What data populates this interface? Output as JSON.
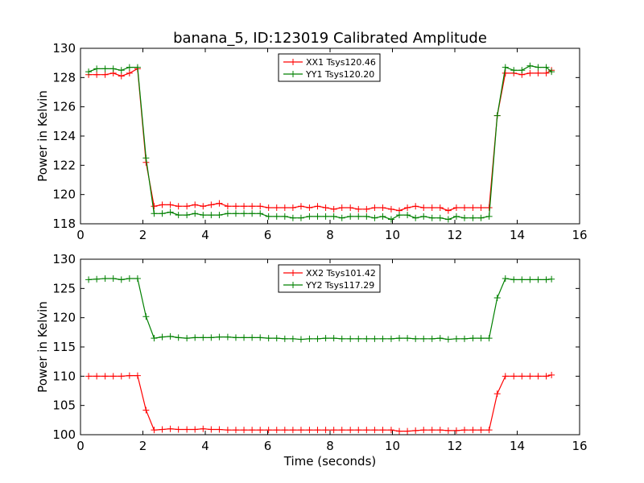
{
  "figure": {
    "title": "banana_5, ID:123019 Calibrated Amplitude",
    "xlabel": "Time (seconds)"
  },
  "chart_data": [
    {
      "type": "line",
      "title": "banana_5, ID:123019 Calibrated Amplitude",
      "xlabel": "",
      "ylabel": "Power in Kelvin",
      "xlim": [
        0,
        16
      ],
      "ylim": [
        118,
        130
      ],
      "xticks": [
        0,
        2,
        4,
        6,
        8,
        10,
        12,
        14,
        16
      ],
      "yticks": [
        118,
        120,
        122,
        124,
        126,
        128,
        130
      ],
      "grid": false,
      "legend": "top-center",
      "marker": "+",
      "x": [
        0.26,
        0.52,
        0.79,
        1.05,
        1.31,
        1.57,
        1.83,
        2.1,
        2.36,
        2.62,
        2.88,
        3.14,
        3.41,
        3.67,
        3.93,
        4.19,
        4.45,
        4.72,
        4.98,
        5.24,
        5.5,
        5.76,
        6.03,
        6.29,
        6.55,
        6.81,
        7.07,
        7.34,
        7.6,
        7.86,
        8.12,
        8.38,
        8.65,
        8.91,
        9.17,
        9.43,
        9.69,
        9.96,
        10.22,
        10.48,
        10.74,
        11.0,
        11.27,
        11.53,
        11.79,
        12.05,
        12.31,
        12.58,
        12.84,
        13.1,
        13.36,
        13.62,
        13.89,
        14.15,
        14.41,
        14.67,
        14.93,
        15.1
      ],
      "series": [
        {
          "name": "XX1 Tsys120.46",
          "color": "#ff0000",
          "values": [
            128.2,
            128.2,
            128.2,
            128.3,
            128.1,
            128.3,
            128.6,
            122.2,
            119.2,
            119.3,
            119.3,
            119.2,
            119.2,
            119.3,
            119.2,
            119.3,
            119.4,
            119.2,
            119.2,
            119.2,
            119.2,
            119.2,
            119.1,
            119.1,
            119.1,
            119.1,
            119.2,
            119.1,
            119.2,
            119.1,
            119.0,
            119.1,
            119.1,
            119.0,
            119.0,
            119.1,
            119.1,
            119.0,
            118.9,
            119.1,
            119.2,
            119.1,
            119.1,
            119.1,
            118.9,
            119.1,
            119.1,
            119.1,
            119.1,
            119.1,
            125.4,
            128.3,
            128.3,
            128.2,
            128.3,
            128.3,
            128.3,
            128.5
          ]
        },
        {
          "name": "YY1 Tsys120.20",
          "color": "#008000",
          "values": [
            128.4,
            128.6,
            128.6,
            128.6,
            128.5,
            128.7,
            128.7,
            122.5,
            118.7,
            118.7,
            118.8,
            118.6,
            118.6,
            118.7,
            118.6,
            118.6,
            118.6,
            118.7,
            118.7,
            118.7,
            118.7,
            118.7,
            118.5,
            118.5,
            118.5,
            118.4,
            118.4,
            118.5,
            118.5,
            118.5,
            118.5,
            118.4,
            118.5,
            118.5,
            118.5,
            118.4,
            118.5,
            118.3,
            118.6,
            118.6,
            118.4,
            118.5,
            118.4,
            118.4,
            118.3,
            118.5,
            118.4,
            118.4,
            118.4,
            118.5,
            125.4,
            128.7,
            128.5,
            128.5,
            128.8,
            128.7,
            128.7,
            128.4
          ]
        }
      ]
    },
    {
      "type": "line",
      "title": "",
      "xlabel": "Time (seconds)",
      "ylabel": "Power in Kelvin",
      "xlim": [
        0,
        16
      ],
      "ylim": [
        100,
        130
      ],
      "xticks": [
        0,
        2,
        4,
        6,
        8,
        10,
        12,
        14,
        16
      ],
      "yticks": [
        100,
        105,
        110,
        115,
        120,
        125,
        130
      ],
      "grid": false,
      "legend": "top-center",
      "marker": "+",
      "x": [
        0.26,
        0.52,
        0.79,
        1.05,
        1.31,
        1.57,
        1.83,
        2.1,
        2.36,
        2.62,
        2.88,
        3.14,
        3.41,
        3.67,
        3.93,
        4.19,
        4.45,
        4.72,
        4.98,
        5.24,
        5.5,
        5.76,
        6.03,
        6.29,
        6.55,
        6.81,
        7.07,
        7.34,
        7.6,
        7.86,
        8.12,
        8.38,
        8.65,
        8.91,
        9.17,
        9.43,
        9.69,
        9.96,
        10.22,
        10.48,
        10.74,
        11.0,
        11.27,
        11.53,
        11.79,
        12.05,
        12.31,
        12.58,
        12.84,
        13.1,
        13.36,
        13.62,
        13.89,
        14.15,
        14.41,
        14.67,
        14.93,
        15.1
      ],
      "series": [
        {
          "name": "XX2 Tsys101.42",
          "color": "#ff0000",
          "values": [
            110.0,
            110.0,
            110.0,
            110.0,
            110.0,
            110.1,
            110.1,
            104.2,
            100.8,
            100.9,
            101.0,
            100.9,
            100.9,
            100.9,
            101.0,
            100.9,
            100.9,
            100.8,
            100.8,
            100.8,
            100.8,
            100.8,
            100.8,
            100.8,
            100.8,
            100.8,
            100.8,
            100.8,
            100.8,
            100.8,
            100.8,
            100.8,
            100.8,
            100.8,
            100.8,
            100.8,
            100.8,
            100.8,
            100.6,
            100.6,
            100.7,
            100.8,
            100.8,
            100.8,
            100.7,
            100.7,
            100.8,
            100.8,
            100.8,
            100.8,
            107.0,
            110.0,
            110.0,
            110.0,
            110.0,
            110.0,
            110.0,
            110.2
          ]
        },
        {
          "name": "YY2 Tsys117.29",
          "color": "#008000",
          "values": [
            126.5,
            126.6,
            126.7,
            126.7,
            126.5,
            126.7,
            126.7,
            120.2,
            116.5,
            116.7,
            116.8,
            116.6,
            116.5,
            116.6,
            116.6,
            116.6,
            116.7,
            116.7,
            116.6,
            116.6,
            116.6,
            116.6,
            116.5,
            116.5,
            116.4,
            116.4,
            116.3,
            116.4,
            116.4,
            116.5,
            116.5,
            116.4,
            116.4,
            116.4,
            116.4,
            116.4,
            116.4,
            116.4,
            116.5,
            116.5,
            116.4,
            116.4,
            116.4,
            116.5,
            116.3,
            116.4,
            116.4,
            116.5,
            116.5,
            116.5,
            123.4,
            126.7,
            126.5,
            126.5,
            126.5,
            126.5,
            126.5,
            126.6
          ]
        }
      ]
    }
  ]
}
